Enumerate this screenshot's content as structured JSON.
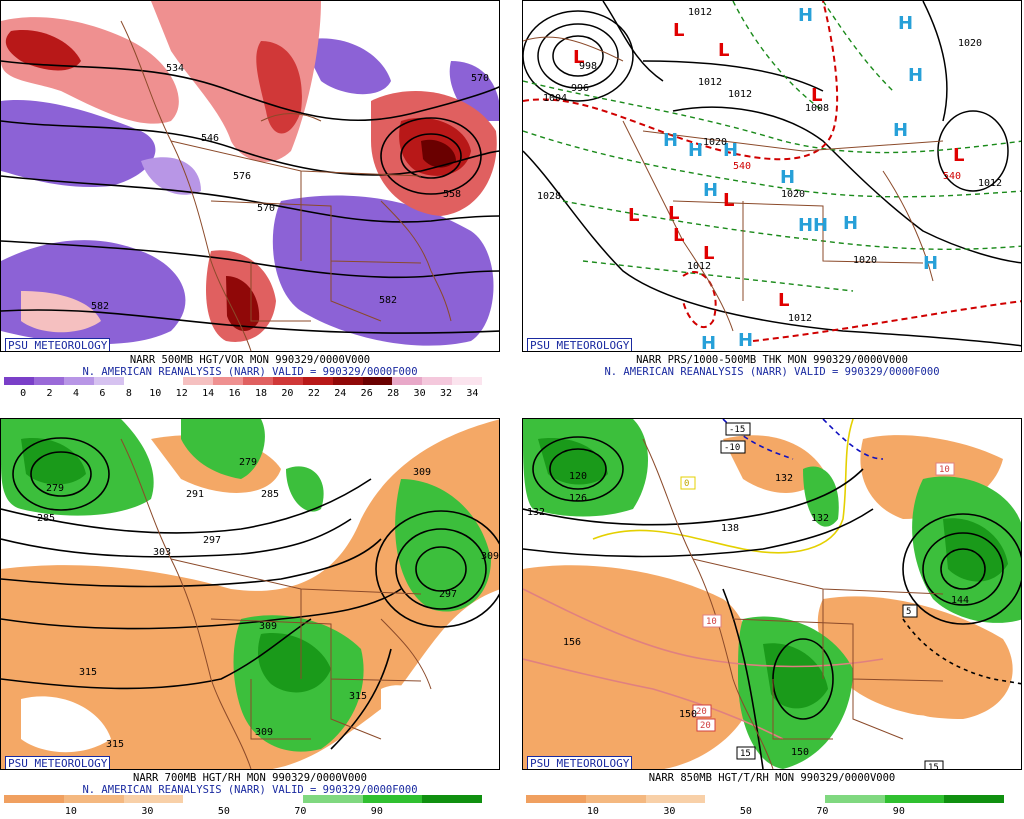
{
  "brand": "PSU METEOROLOGY",
  "panels": [
    {
      "caption_line1": "NARR 500MB HGT/VOR MON 990329/0000V000",
      "caption_line2": "N. AMERICAN REANALYSIS (NARR) VALID = 990329/0000F000",
      "colorbar_colors": [
        "#7a3fc8",
        "#9a6ad8",
        "#b896e6",
        "#d6c2f0",
        "#ffffff",
        "#ffffff",
        "#f5c0c0",
        "#ef9090",
        "#e06060",
        "#d03838",
        "#b81818",
        "#900808",
        "#6a0000",
        "#e8a8c8",
        "#f4c8dc",
        "#fbe4ee"
      ],
      "colorbar_ticks": [
        "0",
        "2",
        "4",
        "6",
        "8",
        "10",
        "12",
        "14",
        "16",
        "18",
        "20",
        "22",
        "24",
        "26",
        "28",
        "30",
        "32",
        "34"
      ],
      "contour_labels": [
        "534",
        "570",
        "546",
        "558",
        "570",
        "582",
        "582",
        "576",
        "534"
      ]
    },
    {
      "caption_line1": "NARR PRS/1000-500MB THK MON 990329/0000V000",
      "caption_line2": "N. AMERICAN REANALYSIS (NARR) VALID = 990329/0000F000",
      "contour_labels": [
        "1012",
        "1012",
        "1012",
        "1028",
        "1020",
        "1020",
        "1012",
        "1012",
        "1020",
        "1012",
        "1004",
        "1008",
        "1020",
        "996",
        "998",
        "540",
        "540"
      ],
      "high_symbol": "H",
      "low_symbol": "L"
    },
    {
      "caption_line1": "NARR 700MB HGT/RH MON 990329/0000V000",
      "caption_line2": "N. AMERICAN REANALYSIS (NARR) VALID = 990329/0000F000",
      "colorbar_colors": [
        "#f0a060",
        "#f4b880",
        "#f8d0a8",
        "#ffffff",
        "#ffffff",
        "#80d880",
        "#30c030",
        "#109010"
      ],
      "colorbar_ticks": [
        "10",
        "30",
        "50",
        "70",
        "90"
      ],
      "contour_labels": [
        "279",
        "291",
        "285",
        "279",
        "309",
        "303",
        "297",
        "309",
        "315",
        "315",
        "309",
        "315",
        "297",
        "285",
        "309"
      ]
    },
    {
      "caption_line1": "NARR 850MB HGT/T/RH MON 990329/0000V000",
      "caption_line2": "",
      "colorbar_colors": [
        "#f0a060",
        "#f4b880",
        "#f8d0a8",
        "#ffffff",
        "#ffffff",
        "#80d880",
        "#30c030",
        "#109010"
      ],
      "colorbar_ticks": [
        "10",
        "30",
        "50",
        "70",
        "90"
      ],
      "contour_labels": [
        "120",
        "126",
        "132",
        "132",
        "138",
        "144",
        "150",
        "156",
        "150",
        "132",
        "-15",
        "-10",
        "0",
        "10",
        "20",
        "20",
        "5",
        "15",
        "10",
        "15"
      ]
    }
  ]
}
